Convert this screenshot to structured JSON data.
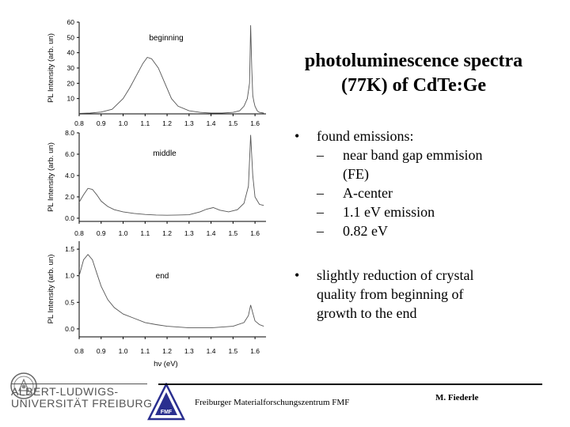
{
  "title": {
    "line1": "photoluminescence spectra",
    "line2": "(77K) of CdTe:Ge"
  },
  "bullets": [
    {
      "text": "found emissions:",
      "sub": [
        {
          "lines": [
            "near band gap emmision",
            "(FE)"
          ]
        },
        {
          "lines": [
            "A-center"
          ]
        },
        {
          "lines": [
            "1.1 eV emission"
          ]
        },
        {
          "lines": [
            "0.82 eV"
          ]
        }
      ]
    },
    {
      "lines": [
        "slightly reduction of crystal",
        "quality from beginning of",
        "growth to the end"
      ]
    }
  ],
  "bullet_symbol": "•",
  "dash_symbol": "–",
  "footer": {
    "university_line1": "ALBERT-LUDWIGS-",
    "university_line2": "UNIVERSITÄT FREIBURG",
    "fmf_logo_text": "FMF",
    "center": "Freiburger Materialforschungszentrum FMF",
    "right": "M. Fiederle"
  },
  "colors": {
    "trace": "#555555",
    "axis": "#000000",
    "text": "#000000"
  },
  "chart_data": [
    {
      "type": "line",
      "title": "beginning",
      "ylabel": "PL Intensity (arb. un)",
      "xlabel": "",
      "xlim": [
        0.8,
        1.65
      ],
      "ylim": [
        0,
        60
      ],
      "xticks": [
        0.8,
        0.9,
        1.0,
        1.1,
        1.2,
        1.3,
        1.4,
        1.5,
        1.6
      ],
      "xtick_labels": [
        "0.8",
        "0.9",
        "1.0",
        "1.1",
        "1.2",
        "1.3",
        "1.4",
        "1.5",
        "1.6"
      ],
      "yticks": [
        10,
        20,
        30,
        40,
        50,
        60
      ],
      "ytick_labels": [
        "10",
        "20",
        "30",
        "40",
        "50",
        "60"
      ],
      "series": [
        {
          "x": [
            0.8,
            0.85,
            0.9,
            0.95,
            1.0,
            1.03,
            1.06,
            1.09,
            1.11,
            1.13,
            1.16,
            1.19,
            1.22,
            1.25,
            1.3,
            1.35,
            1.4,
            1.45,
            1.5,
            1.53,
            1.55,
            1.565,
            1.575,
            1.58,
            1.585,
            1.59,
            1.595,
            1.6,
            1.61,
            1.62,
            1.64
          ],
          "y": [
            0.3,
            0.5,
            1.2,
            3.0,
            10.0,
            17.0,
            25.0,
            33.0,
            37.0,
            36.0,
            30.0,
            20.0,
            10.0,
            5.0,
            2.0,
            1.0,
            0.5,
            0.5,
            1.0,
            2.0,
            5.0,
            10.0,
            20.0,
            58.0,
            30.0,
            12.0,
            8.0,
            5.0,
            2.0,
            1.0,
            0.5
          ]
        }
      ]
    },
    {
      "type": "line",
      "title": "middle",
      "ylabel": "PL Intensity (arb. un)",
      "xlabel": "",
      "xlim": [
        0.8,
        1.65
      ],
      "ylim": [
        -0.3,
        8.0
      ],
      "xticks": [
        0.8,
        0.9,
        1.0,
        1.1,
        1.2,
        1.3,
        1.4,
        1.5,
        1.6
      ],
      "xtick_labels": [
        "0.8",
        "0.9",
        "1.0",
        "1.1",
        "1.2",
        "1.3",
        "1.4",
        "1.5",
        "1.6"
      ],
      "yticks": [
        0.0,
        2.0,
        4.0,
        6.0,
        8.0
      ],
      "ytick_labels": [
        "0.0",
        "2.0",
        "4.0",
        "6.0",
        "8.0"
      ],
      "series": [
        {
          "x": [
            0.8,
            0.82,
            0.84,
            0.86,
            0.88,
            0.9,
            0.93,
            0.96,
            1.0,
            1.05,
            1.1,
            1.15,
            1.2,
            1.25,
            1.3,
            1.35,
            1.38,
            1.41,
            1.44,
            1.48,
            1.52,
            1.55,
            1.57,
            1.58,
            1.59,
            1.6,
            1.62,
            1.64
          ],
          "y": [
            1.5,
            2.2,
            2.8,
            2.7,
            2.2,
            1.6,
            1.1,
            0.8,
            0.6,
            0.45,
            0.35,
            0.3,
            0.28,
            0.3,
            0.32,
            0.6,
            0.85,
            1.0,
            0.75,
            0.6,
            0.8,
            1.4,
            3.0,
            7.8,
            4.0,
            2.0,
            1.3,
            1.2
          ]
        }
      ]
    },
    {
      "type": "line",
      "title": "end",
      "ylabel": "PL Intensity (arb. un)",
      "xlabel": "hν (eV)",
      "xlim": [
        0.8,
        1.65
      ],
      "ylim": [
        -0.15,
        1.65
      ],
      "xticks": [
        0.8,
        0.9,
        1.0,
        1.1,
        1.2,
        1.3,
        1.4,
        1.5,
        1.6
      ],
      "xtick_labels": [
        "0.8",
        "0.9",
        "1.0",
        "1.1",
        "1.2",
        "1.3",
        "1.4",
        "1.5",
        "1.6"
      ],
      "yticks": [
        0.0,
        0.5,
        1.0,
        1.5
      ],
      "ytick_labels": [
        "0.0",
        "0.5",
        "1.0",
        "1.5"
      ],
      "series": [
        {
          "x": [
            0.8,
            0.82,
            0.84,
            0.86,
            0.88,
            0.9,
            0.93,
            0.96,
            1.0,
            1.05,
            1.1,
            1.15,
            1.2,
            1.3,
            1.4,
            1.5,
            1.55,
            1.57,
            1.58,
            1.59,
            1.6,
            1.62,
            1.64
          ],
          "y": [
            1.0,
            1.3,
            1.4,
            1.3,
            1.05,
            0.8,
            0.55,
            0.4,
            0.28,
            0.2,
            0.12,
            0.08,
            0.05,
            0.02,
            0.02,
            0.05,
            0.12,
            0.25,
            0.45,
            0.3,
            0.15,
            0.08,
            0.05
          ]
        }
      ]
    }
  ]
}
